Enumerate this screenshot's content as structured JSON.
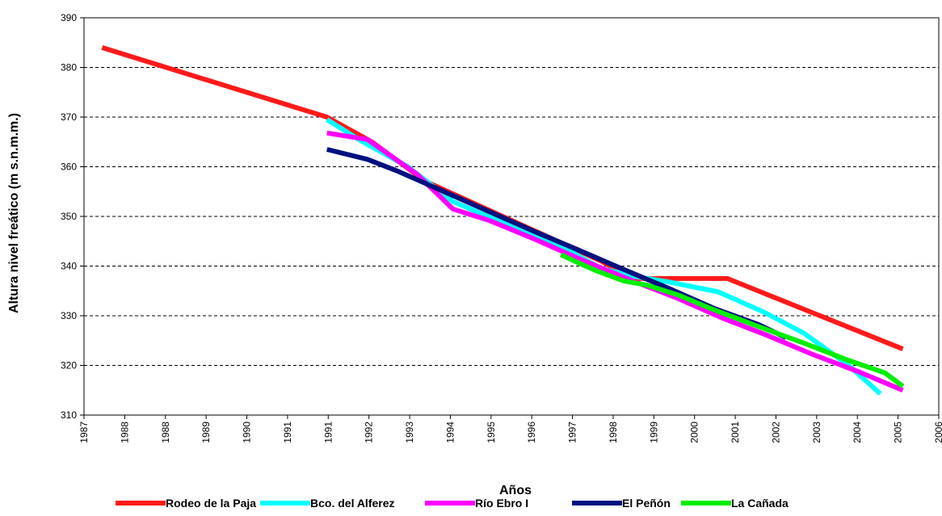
{
  "chart_data": {
    "type": "line",
    "title": "",
    "xlabel": "Años",
    "ylabel": "Altura nivel freático (m s.n.m.m.)",
    "xlim": [
      1987,
      2006
    ],
    "ylim": [
      310,
      390
    ],
    "x_tick_labels": [
      "1987",
      "1988",
      "1988",
      "1989",
      "1990",
      "1991",
      "1991",
      "1992",
      "1993",
      "1994",
      "1995",
      "1996",
      "1997",
      "1998",
      "1999",
      "2000",
      "2001",
      "2002",
      "2003",
      "2004",
      "2005",
      "2006"
    ],
    "y_ticks": [
      310,
      320,
      330,
      340,
      350,
      360,
      370,
      380,
      390
    ],
    "grid": "horizontal dashed",
    "legend_position": "bottom",
    "series": [
      {
        "name": "Rodeo de la Paja",
        "color": "#ff1a1a",
        "points": [
          [
            1987.4,
            384
          ],
          [
            1992.4,
            370
          ],
          [
            1993.4,
            365
          ],
          [
            1994.6,
            357
          ],
          [
            1998.5,
            341
          ],
          [
            1999.2,
            337.5
          ],
          [
            2001.3,
            337.5
          ],
          [
            2005.2,
            323.3
          ]
        ]
      },
      {
        "name": "Bco. del Alferez",
        "color": "#00ffff",
        "points": [
          [
            1992.4,
            369.5
          ],
          [
            1993.2,
            365
          ],
          [
            1994.2,
            360
          ],
          [
            1995.2,
            353
          ],
          [
            1996.5,
            348
          ],
          [
            1997.6,
            344
          ],
          [
            1998.5,
            339.5
          ],
          [
            1999.2,
            338
          ],
          [
            2000.0,
            336.8
          ],
          [
            2001.1,
            334.8
          ],
          [
            2002.1,
            330.8
          ],
          [
            2003.0,
            326.5
          ],
          [
            2004.0,
            320
          ],
          [
            2004.7,
            314.3
          ]
        ]
      },
      {
        "name": "Río Ebro I",
        "color": "#ff00ff",
        "points": [
          [
            1992.4,
            366.8
          ],
          [
            1993.3,
            365.5
          ],
          [
            1994.4,
            358.5
          ],
          [
            1995.2,
            351.5
          ],
          [
            1996.0,
            349.2
          ],
          [
            1997.0,
            345.5
          ],
          [
            1998.0,
            341.5
          ],
          [
            1999.2,
            337
          ],
          [
            2000.2,
            333.5
          ],
          [
            2001.2,
            329.5
          ],
          [
            2002.2,
            326
          ],
          [
            2003.2,
            322.2
          ],
          [
            2004.2,
            318.8
          ],
          [
            2005.2,
            315
          ]
        ]
      },
      {
        "name": "El Peñón",
        "color": "#001080",
        "points": [
          [
            1992.4,
            363.5
          ],
          [
            1993.3,
            361.5
          ],
          [
            1994.0,
            359
          ],
          [
            1995.0,
            355
          ],
          [
            1996.0,
            351
          ],
          [
            1997.0,
            347
          ],
          [
            1998.0,
            343.2
          ],
          [
            1999.0,
            339.3
          ],
          [
            2000.0,
            335.5
          ],
          [
            2001.0,
            331.5
          ],
          [
            2002.0,
            328.2
          ],
          [
            2002.6,
            325.6
          ]
        ]
      },
      {
        "name": "La Cañada",
        "color": "#00ee00",
        "points": [
          [
            1997.6,
            342.3
          ],
          [
            1998.0,
            340.6
          ],
          [
            1998.4,
            339
          ],
          [
            1999.0,
            337
          ],
          [
            1999.5,
            336.2
          ],
          [
            2000.2,
            334.2
          ],
          [
            2001.0,
            331.2
          ],
          [
            2002.0,
            327.8
          ],
          [
            2003.0,
            324.5
          ],
          [
            2004.0,
            321
          ],
          [
            2004.8,
            318.5
          ],
          [
            2005.2,
            315.8
          ]
        ]
      }
    ]
  }
}
